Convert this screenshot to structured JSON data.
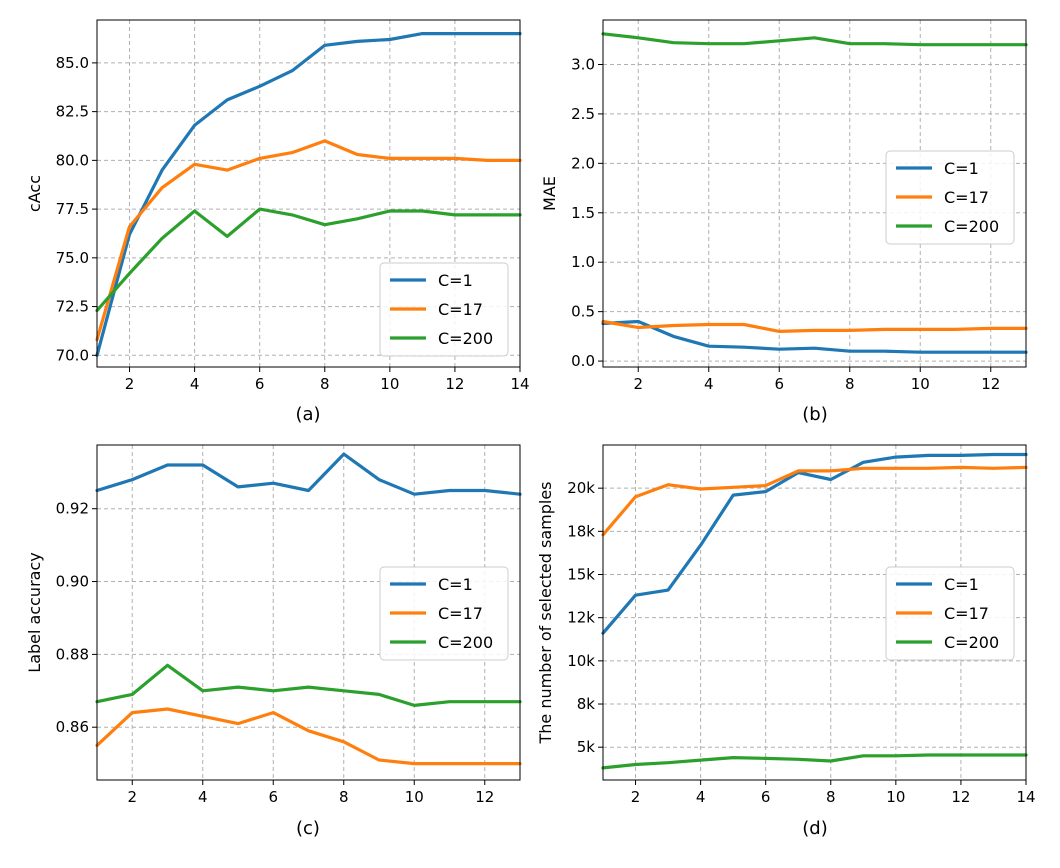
{
  "colors": {
    "C=1": "#1f77b4",
    "C=17": "#ff7f0e",
    "C=200": "#2ca02c",
    "grid": "#b0b0b0"
  },
  "chart_data": [
    {
      "type": "line",
      "caption": "(a)",
      "xlabel": "",
      "ylabel": "cAcc",
      "xlim": [
        1,
        14
      ],
      "ylim": [
        69.4,
        87.2
      ],
      "xticks": [
        2,
        4,
        6,
        8,
        10,
        12,
        14
      ],
      "xtick_labels": [
        "2",
        "4",
        "6",
        "8",
        "10",
        "12",
        "14"
      ],
      "yticks": [
        70.0,
        72.5,
        75.0,
        77.5,
        80.0,
        82.5,
        85.0
      ],
      "ytick_labels": [
        "70.0",
        "72.5",
        "75.0",
        "77.5",
        "80.0",
        "82.5",
        "85.0"
      ],
      "grid": true,
      "legend_position": "lower-right",
      "x": [
        1,
        2,
        3,
        4,
        5,
        6,
        7,
        8,
        9,
        10,
        11,
        12,
        13,
        14
      ],
      "series": [
        {
          "name": "C=1",
          "color": "#1f77b4",
          "values": [
            70.0,
            76.2,
            79.5,
            81.8,
            83.1,
            83.8,
            84.6,
            85.9,
            86.1,
            86.2,
            86.5,
            86.5,
            86.5,
            86.5
          ]
        },
        {
          "name": "C=17",
          "color": "#ff7f0e",
          "values": [
            70.8,
            76.6,
            78.6,
            79.8,
            79.5,
            80.1,
            80.4,
            81.0,
            80.3,
            80.1,
            80.1,
            80.1,
            80.0,
            80.0
          ]
        },
        {
          "name": "C=200",
          "color": "#2ca02c",
          "values": [
            72.3,
            74.2,
            76.0,
            77.4,
            76.1,
            77.5,
            77.2,
            76.7,
            77.0,
            77.4,
            77.4,
            77.2,
            77.2,
            77.2
          ]
        }
      ]
    },
    {
      "type": "line",
      "caption": "(b)",
      "xlabel": "",
      "ylabel": "MAE",
      "xlim": [
        1,
        13
      ],
      "ylim": [
        -0.06,
        3.45
      ],
      "xticks": [
        2,
        4,
        6,
        8,
        10,
        12
      ],
      "xtick_labels": [
        "2",
        "4",
        "6",
        "8",
        "10",
        "12"
      ],
      "yticks": [
        0.0,
        0.5,
        1.0,
        1.5,
        2.0,
        2.5,
        3.0
      ],
      "ytick_labels": [
        "0.0",
        "0.5",
        "1.0",
        "1.5",
        "2.0",
        "2.5",
        "3.0"
      ],
      "grid": true,
      "legend_position": "center-right",
      "x": [
        1,
        2,
        3,
        4,
        5,
        6,
        7,
        8,
        9,
        10,
        11,
        12,
        13
      ],
      "series": [
        {
          "name": "C=1",
          "color": "#1f77b4",
          "values": [
            0.38,
            0.4,
            0.25,
            0.15,
            0.14,
            0.12,
            0.13,
            0.1,
            0.1,
            0.09,
            0.09,
            0.09,
            0.09
          ]
        },
        {
          "name": "C=17",
          "color": "#ff7f0e",
          "values": [
            0.4,
            0.34,
            0.36,
            0.37,
            0.37,
            0.3,
            0.31,
            0.31,
            0.32,
            0.32,
            0.32,
            0.33,
            0.33
          ]
        },
        {
          "name": "C=200",
          "color": "#2ca02c",
          "values": [
            3.31,
            3.27,
            3.22,
            3.21,
            3.21,
            3.24,
            3.27,
            3.21,
            3.21,
            3.2,
            3.2,
            3.2,
            3.2
          ]
        }
      ]
    },
    {
      "type": "line",
      "caption": "(c)",
      "xlabel": "",
      "ylabel": "Label accuracy",
      "xlim": [
        1,
        13
      ],
      "ylim": [
        0.8455,
        0.9375
      ],
      "xticks": [
        2,
        4,
        6,
        8,
        10,
        12
      ],
      "xtick_labels": [
        "2",
        "4",
        "6",
        "8",
        "10",
        "12"
      ],
      "yticks": [
        0.86,
        0.88,
        0.9,
        0.92
      ],
      "ytick_labels": [
        "0.86",
        "0.88",
        "0.90",
        "0.92"
      ],
      "grid": true,
      "legend_position": "center-right",
      "x": [
        1,
        2,
        3,
        4,
        5,
        6,
        7,
        8,
        9,
        10,
        11,
        12,
        13
      ],
      "series": [
        {
          "name": "C=1",
          "color": "#1f77b4",
          "values": [
            0.925,
            0.928,
            0.932,
            0.932,
            0.926,
            0.927,
            0.925,
            0.935,
            0.928,
            0.924,
            0.925,
            0.925,
            0.924
          ]
        },
        {
          "name": "C=17",
          "color": "#ff7f0e",
          "values": [
            0.855,
            0.864,
            0.865,
            0.863,
            0.861,
            0.864,
            0.859,
            0.856,
            0.851,
            0.85,
            0.85,
            0.85,
            0.85
          ]
        },
        {
          "name": "C=200",
          "color": "#2ca02c",
          "values": [
            0.867,
            0.869,
            0.877,
            0.87,
            0.871,
            0.87,
            0.871,
            0.87,
            0.869,
            0.866,
            0.867,
            0.867,
            0.867
          ]
        }
      ]
    },
    {
      "type": "line",
      "caption": "(d)",
      "xlabel": "",
      "ylabel": "The number of selected samples",
      "xlim": [
        1,
        14
      ],
      "ylim": [
        3100,
        22500
      ],
      "xticks": [
        2,
        4,
        6,
        8,
        10,
        12,
        14
      ],
      "xtick_labels": [
        "2",
        "4",
        "6",
        "8",
        "10",
        "12",
        "14"
      ],
      "yticks": [
        5000,
        7500,
        10000,
        12500,
        15000,
        17500,
        20000
      ],
      "ytick_labels": [
        "5k",
        "8k",
        "10k",
        "12k",
        "15k",
        "18k",
        "20k"
      ],
      "grid": true,
      "legend_position": "center-right",
      "x": [
        1,
        2,
        3,
        4,
        5,
        6,
        7,
        8,
        9,
        10,
        11,
        12,
        13,
        14
      ],
      "series": [
        {
          "name": "C=1",
          "color": "#1f77b4",
          "values": [
            11600,
            13800,
            14100,
            16700,
            19600,
            19800,
            20900,
            20500,
            21500,
            21800,
            21900,
            21900,
            21950,
            21950
          ]
        },
        {
          "name": "C=17",
          "color": "#ff7f0e",
          "values": [
            17300,
            19500,
            20200,
            19950,
            20050,
            20150,
            21000,
            21000,
            21150,
            21150,
            21150,
            21200,
            21150,
            21200
          ]
        },
        {
          "name": "C=200",
          "color": "#2ca02c",
          "values": [
            3800,
            4000,
            4100,
            4250,
            4400,
            4350,
            4300,
            4200,
            4500,
            4500,
            4550,
            4550,
            4550,
            4550
          ]
        }
      ]
    }
  ]
}
